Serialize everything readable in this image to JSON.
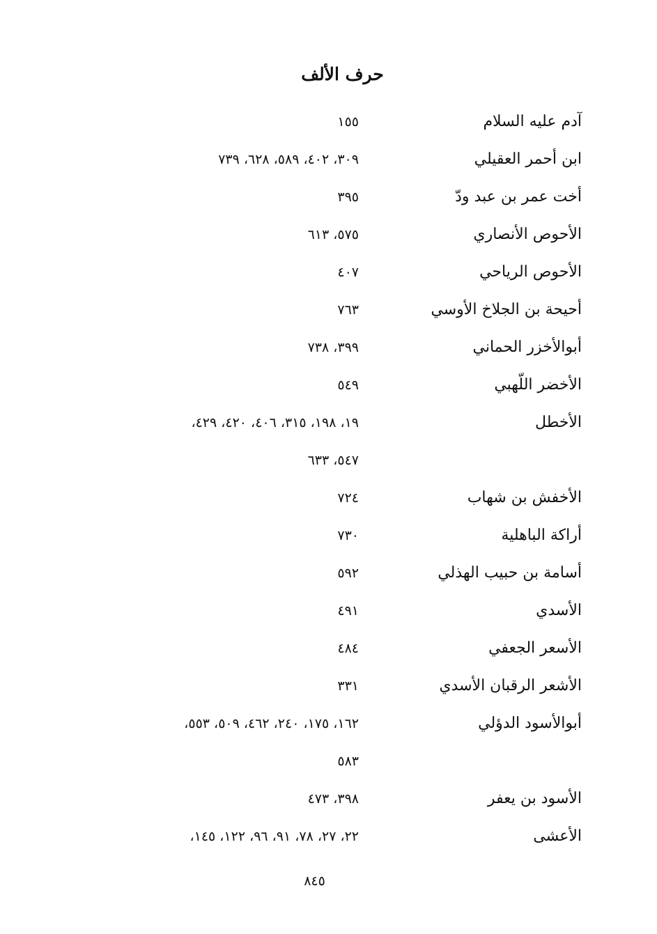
{
  "title": "حرف الألف",
  "entries": [
    {
      "name": "آدم عليه السلام",
      "pages": "١٥٥"
    },
    {
      "name": "ابن أحمر العقيلي",
      "pages": "٣٠٩، ٤٠٢، ٥٨٩، ٦٢٨، ٧٣٩"
    },
    {
      "name": "أخت عمر بن عبد ودّ",
      "pages": "٣٩٥"
    },
    {
      "name": "الأحوص الأنصاري",
      "pages": "٥٧٥، ٦١٣"
    },
    {
      "name": "الأحوص الرياحي",
      "pages": "٤٠٧"
    },
    {
      "name": "أحيحة بن الجلاخ الأوسي",
      "pages": "٧٦٣"
    },
    {
      "name": "أبوالأخزر الحماني",
      "pages": "٣٩٩، ٧٣٨"
    },
    {
      "name": "الأخضر اللّهبي",
      "pages": "٥٤٩"
    },
    {
      "name": "الأخطل",
      "pages": "١٩، ١٩٨، ٣١٥، ٤٠٦، ٤٢٠، ٤٢٩،"
    },
    {
      "name": "",
      "pages": "٥٤٧، ٦٣٣"
    },
    {
      "name": "الأخفش بن شهاب",
      "pages": "٧٢٤"
    },
    {
      "name": "أراكة الباهلية",
      "pages": "٧٣٠"
    },
    {
      "name": "أسامة بن حبيب الهذلي",
      "pages": "٥٩٢"
    },
    {
      "name": "الأسدي",
      "pages": "٤٩١"
    },
    {
      "name": "الأسعر الجعفي",
      "pages": "٤٨٤"
    },
    {
      "name": "الأشعر الرقبان الأسدي",
      "pages": "٣٣١"
    },
    {
      "name": "أبوالأسود الدؤلي",
      "pages": "١٦٢، ١٧٥، ٢٤٠، ٤٦٢، ٥٠٩، ٥٥٣،"
    },
    {
      "name": "",
      "pages": "٥٨٣"
    },
    {
      "name": "الأسود بن يعفر",
      "pages": "٣٩٨، ٤٧٣"
    },
    {
      "name": "الأعشى",
      "pages": "٢٢، ٢٧، ٧٨، ٩١، ٩٦، ١٢٢، ١٤٥،"
    }
  ],
  "page_number": "٨٤٥"
}
